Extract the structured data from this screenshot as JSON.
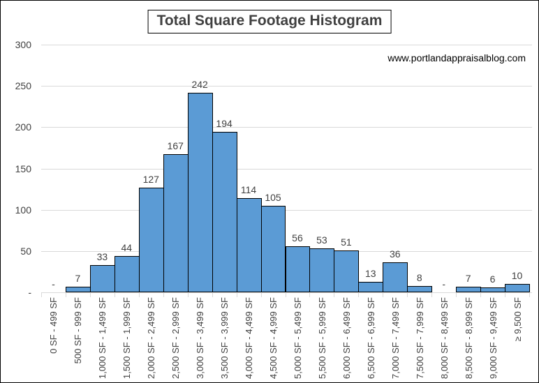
{
  "watermark": "www.portlandappraisalblog.com",
  "chart_data": {
    "type": "bar",
    "title": "Total Square Footage Histogram",
    "xlabel": "",
    "ylabel": "",
    "ylim": [
      0,
      300
    ],
    "grid": true,
    "legend": "none",
    "categories": [
      "0 SF - 499 SF",
      "500 SF - 999 SF",
      "1,000 SF - 1,499 SF",
      "1,500 SF - 1,999 SF",
      "2,000 SF - 2,499 SF",
      "2,500 SF - 2,999 SF",
      "3,000 SF - 3,499 SF",
      "3,500 SF - 3,999 SF",
      "4,000 SF - 4,499 SF",
      "4,500 SF - 4,999 SF",
      "5,000 SF - 5,499 SF",
      "5,500 SF - 5,999 SF",
      "6,000 SF - 6,499 SF",
      "6,500 SF - 6,999 SF",
      "7,000 SF - 7,499 SF",
      "7,500 SF - 7,999 SF",
      "8,000 SF - 8,499 SF",
      "8,500 SF - 8,999 SF",
      "9,000 SF - 9,499 SF",
      "≥ 9,500 SF"
    ],
    "values": [
      0,
      7,
      33,
      44,
      127,
      167,
      242,
      194,
      114,
      105,
      56,
      53,
      51,
      13,
      36,
      8,
      0,
      7,
      6,
      10
    ],
    "data_labels": [
      "-",
      "7",
      "33",
      "44",
      "127",
      "167",
      "242",
      "194",
      "114",
      "105",
      "56",
      "53",
      "51",
      "13",
      "36",
      "8",
      "-",
      "7",
      "6",
      "10"
    ],
    "y_ticks": [
      {
        "value": 0,
        "label": "-"
      },
      {
        "value": 50,
        "label": "50"
      },
      {
        "value": 100,
        "label": "100"
      },
      {
        "value": 150,
        "label": "150"
      },
      {
        "value": 200,
        "label": "200"
      },
      {
        "value": 250,
        "label": "250"
      },
      {
        "value": 300,
        "label": "300"
      }
    ],
    "colors": {
      "bar_fill": "#5b9bd5",
      "bar_border": "#000000",
      "gridline": "#d9d9d9",
      "label_text": "#404040",
      "title_text": "#404040",
      "watermark_text": "#000000"
    }
  }
}
